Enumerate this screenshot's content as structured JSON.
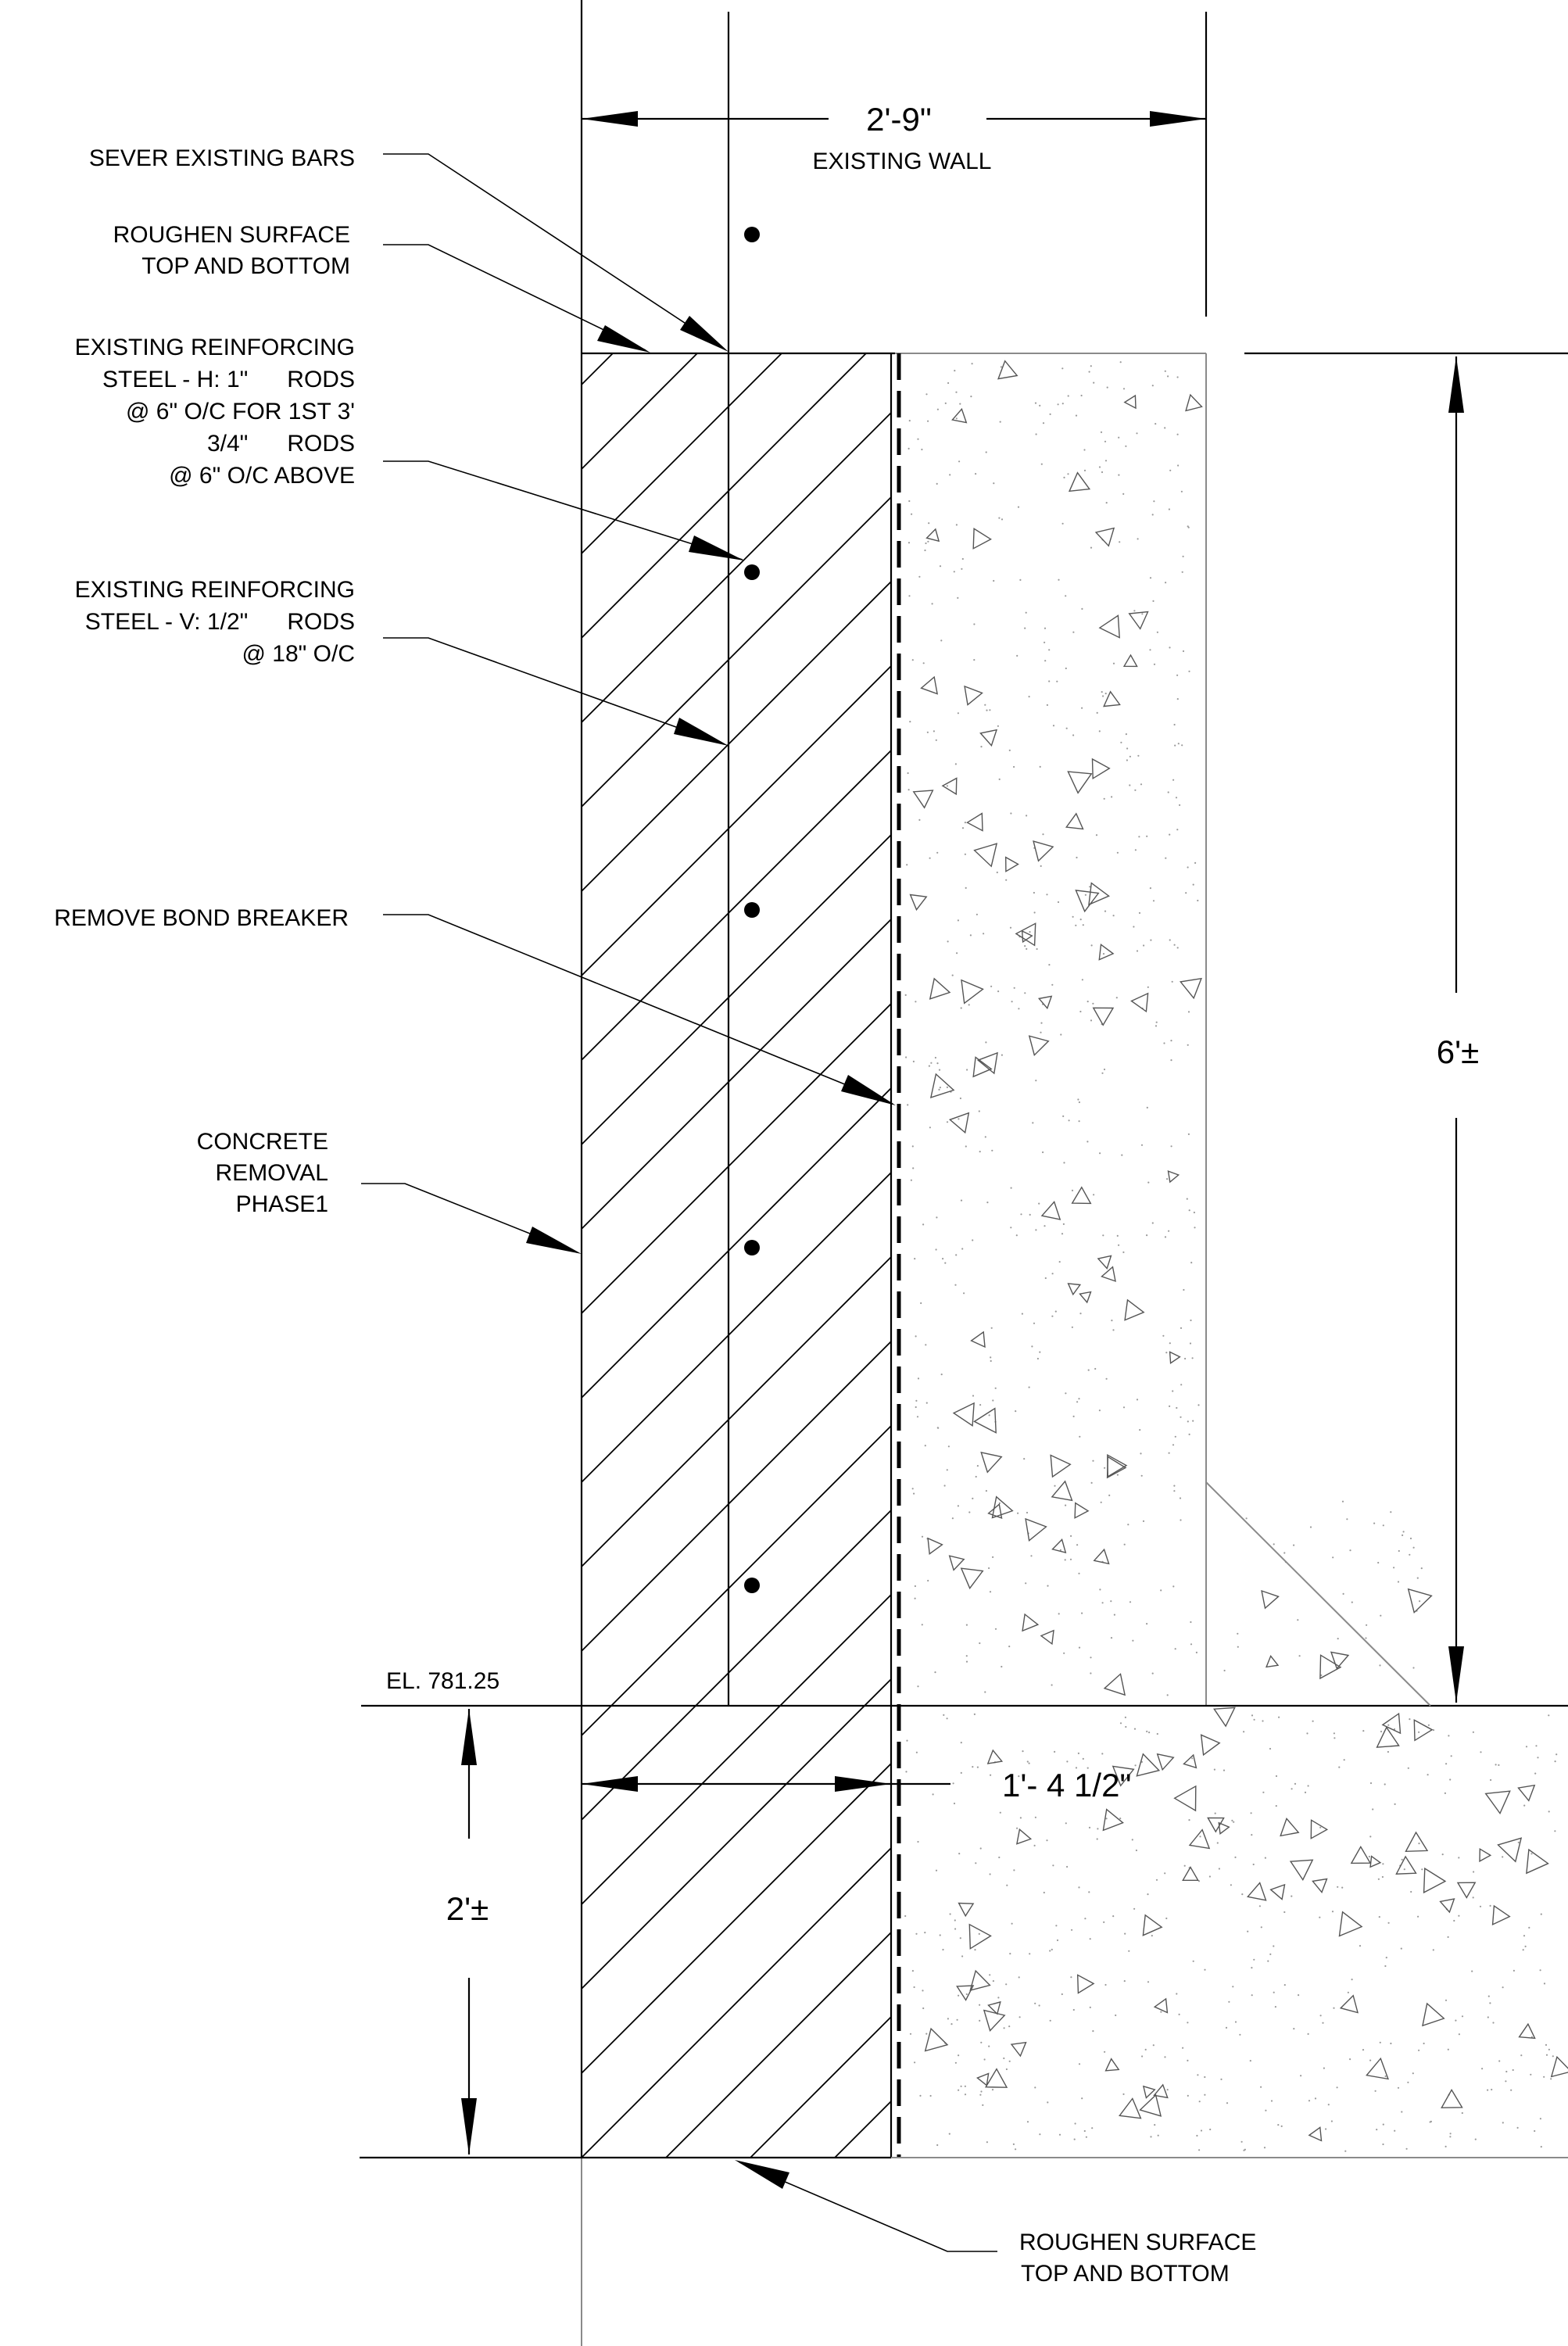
{
  "dimensions": {
    "wall_width": "2'-9\"",
    "upper_height": "6'±",
    "lower_height": "2'±",
    "removal_width": "1'- 4 1/2\""
  },
  "labels": {
    "existing_wall": "EXISTING WALL",
    "sever_bars": "SEVER  EXISTING BARS",
    "roughen_top": [
      "ROUGHEN SURFACE",
      "TOP AND BOTTOM"
    ],
    "reinf_h": [
      "EXISTING REINFORCING",
      "STEEL - H: 1\"      RODS",
      "@ 6\" O/C FOR 1ST 3'",
      "3/4\"      RODS",
      "@ 6\" O/C ABOVE"
    ],
    "reinf_v": [
      "EXISTING REINFORCING",
      "STEEL - V: 1/2\"      RODS",
      "@ 18\" O/C"
    ],
    "bond_breaker": "REMOVE BOND BREAKER",
    "concrete_removal": [
      "CONCRETE",
      "REMOVAL",
      "PHASE1"
    ],
    "elevation": "EL. 781.25",
    "roughen_bottom": [
      "ROUGHEN SURFACE",
      "TOP AND BOTTOM"
    ]
  },
  "icons": {
    "arrow": "arrowhead",
    "rebar": "filled-circle",
    "aggregate": "triangle"
  }
}
